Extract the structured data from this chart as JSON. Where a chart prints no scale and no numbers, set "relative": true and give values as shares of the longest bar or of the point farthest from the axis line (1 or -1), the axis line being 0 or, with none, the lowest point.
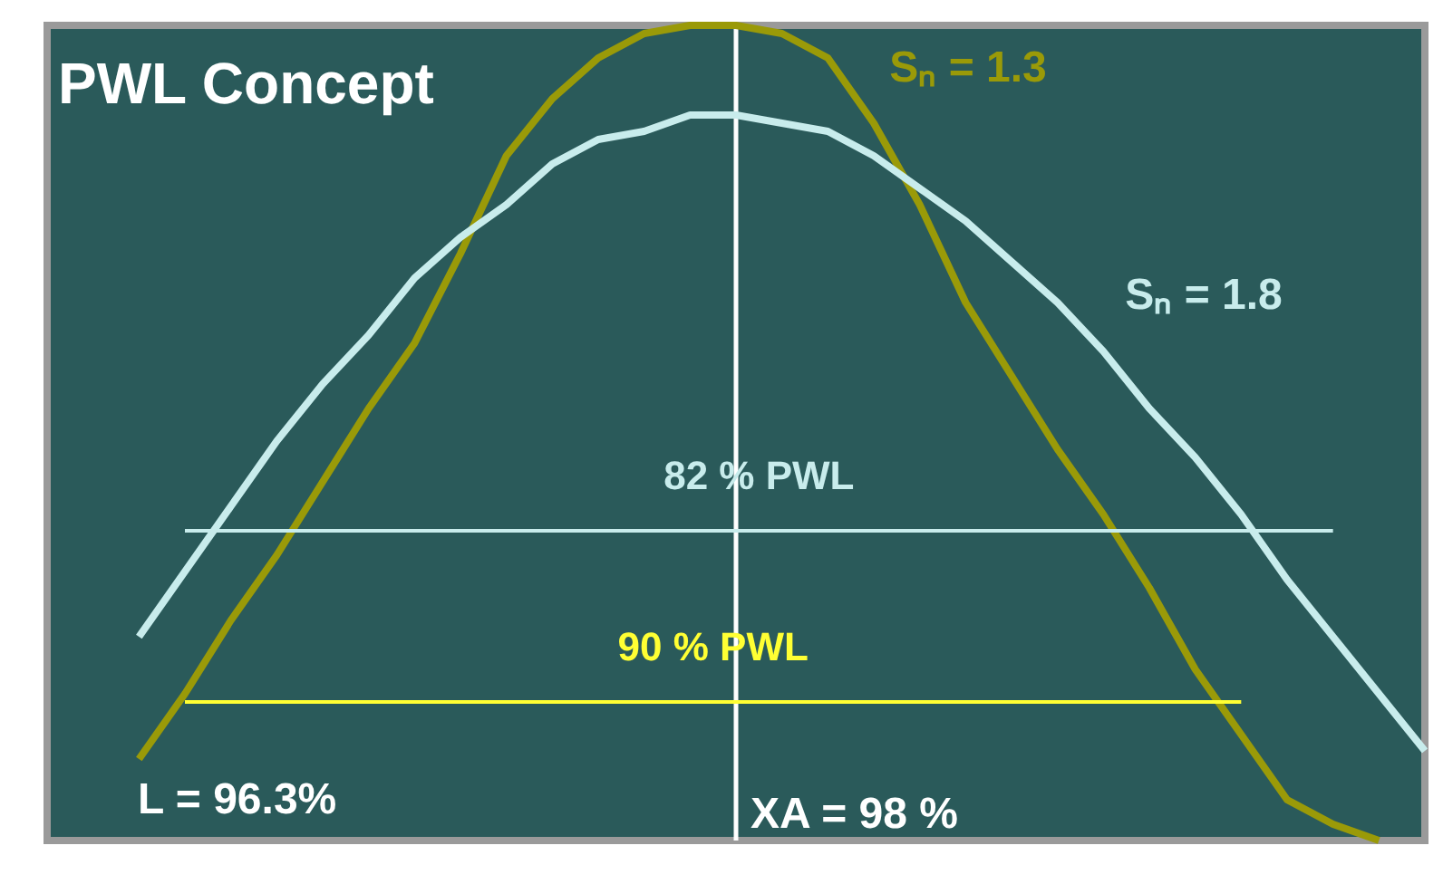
{
  "chart_data": {
    "type": "line",
    "title": "PWL Concept",
    "relative": true,
    "marker": "none",
    "line_style": "solid",
    "categories": [
      null,
      null,
      null,
      null,
      null,
      null,
      null,
      null,
      null,
      null,
      null,
      null,
      null,
      null,
      null,
      null,
      null,
      null,
      null,
      null,
      null,
      null,
      null,
      null,
      null,
      null,
      null,
      null,
      null,
      null,
      null
    ],
    "series": [
      {
        "name": "Sₙ = 1.3",
        "color": "#9a9a08",
        "values": [
          null,
          null,
          0.1,
          0.18,
          0.27,
          0.35,
          0.44,
          0.53,
          0.61,
          0.72,
          0.84,
          0.91,
          0.96,
          0.99,
          1,
          1,
          0.99,
          0.96,
          0.88,
          0.78,
          0.66,
          0.57,
          0.48,
          0.4,
          0.31,
          0.21,
          0.13,
          0.05,
          0.02,
          0,
          null
        ]
      },
      {
        "name": "Sₙ = 1.8",
        "color": "#c8ecec",
        "values": [
          null,
          null,
          0.25,
          0.33,
          0.41,
          0.49,
          0.56,
          0.62,
          0.69,
          0.74,
          0.78,
          0.83,
          0.86,
          0.87,
          0.89,
          0.89,
          0.88,
          0.87,
          0.84,
          0.8,
          0.76,
          0.71,
          0.66,
          0.6,
          0.53,
          0.47,
          0.4,
          0.32,
          0.25,
          0.18,
          0.11
        ]
      },
      {
        "name": "82 % PWL",
        "color": "#c8ecec",
        "values": [
          null,
          null,
          null,
          0.38,
          0.38,
          0.38,
          0.38,
          0.38,
          0.38,
          0.38,
          0.38,
          0.38,
          0.38,
          0.38,
          0.38,
          0.38,
          0.38,
          0.38,
          0.38,
          0.38,
          0.38,
          0.38,
          0.38,
          0.38,
          0.38,
          0.38,
          0.38,
          0.38,
          0.38,
          null,
          null
        ]
      },
      {
        "name": "90 % PWL",
        "color": "#ffff33",
        "values": [
          null,
          null,
          null,
          0.17,
          0.17,
          0.17,
          0.17,
          0.17,
          0.17,
          0.17,
          0.17,
          0.17,
          0.17,
          0.17,
          0.17,
          0.17,
          0.17,
          0.17,
          0.17,
          0.17,
          0.17,
          0.17,
          0.17,
          0.17,
          0.17,
          0.17,
          0.17,
          null,
          null,
          null,
          null
        ]
      }
    ],
    "ref_lines": [
      {
        "axis": "x",
        "label": "XA = 98 %",
        "color": "#ffffff"
      }
    ],
    "annotations": [
      "L = 96.3%"
    ]
  }
}
